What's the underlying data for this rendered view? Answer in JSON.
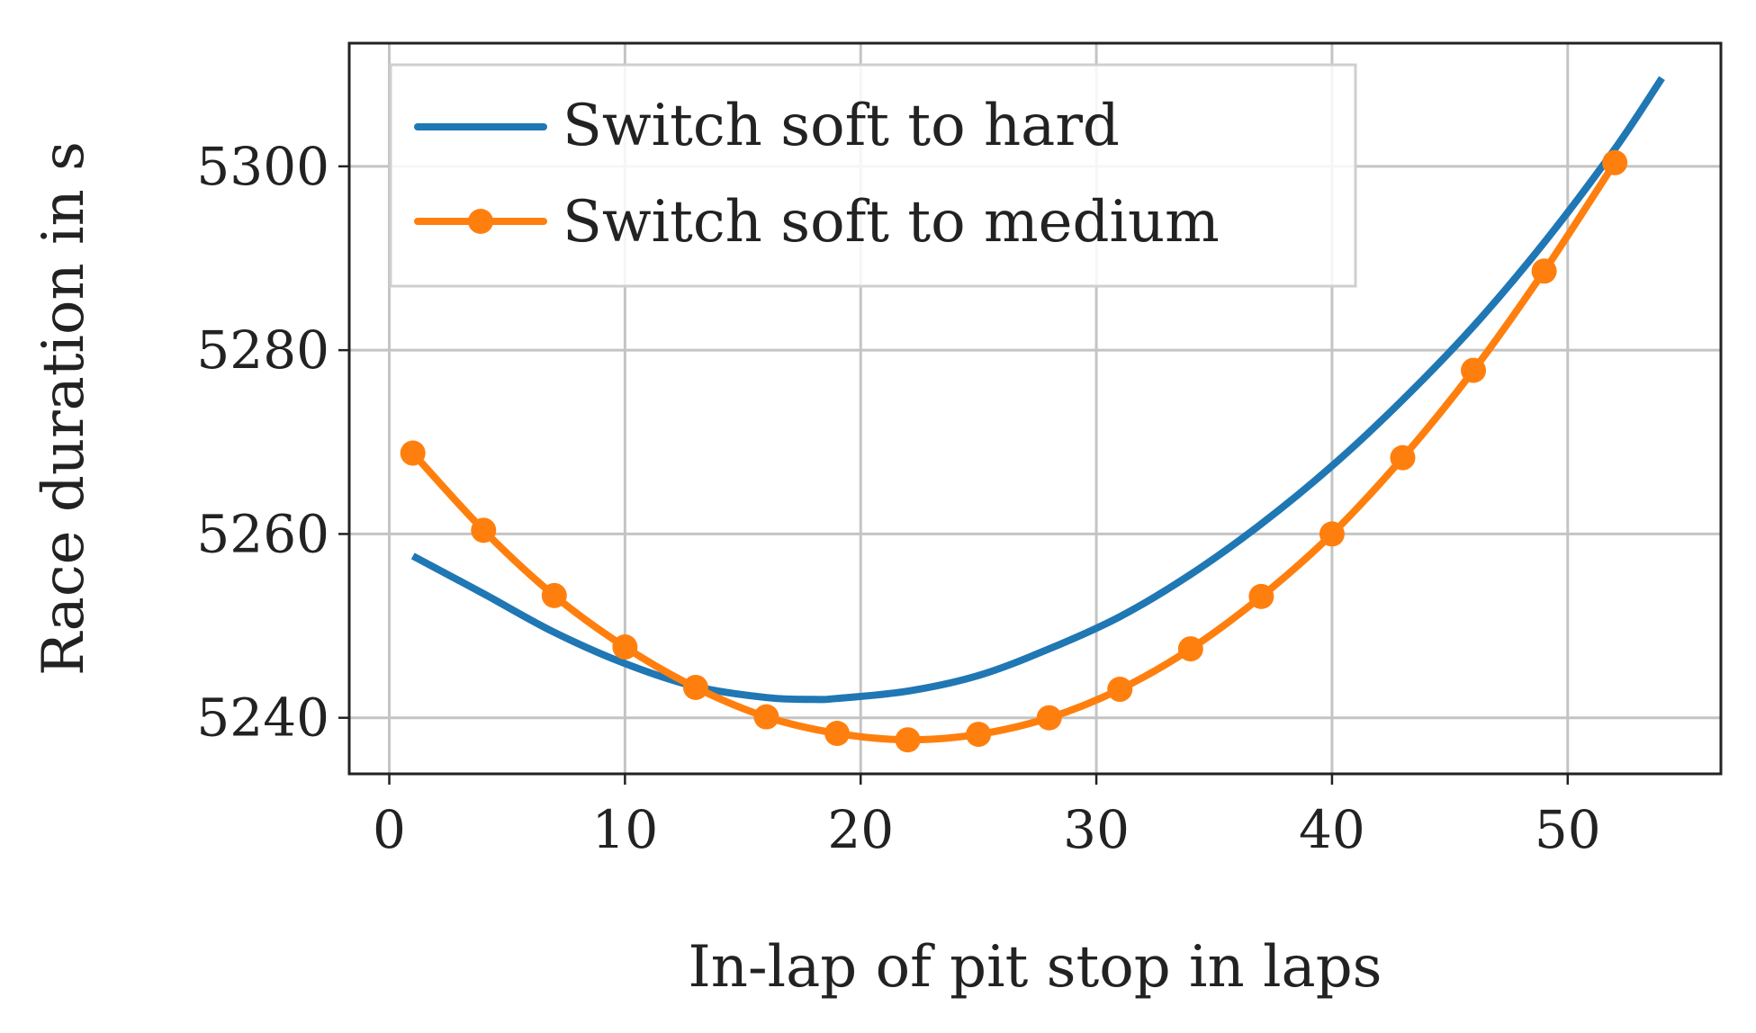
{
  "chart_data": {
    "type": "line",
    "title": "",
    "xlabel": "In-lap of pit stop in laps",
    "ylabel": "Race duration in s",
    "xlim": [
      -1.7,
      56.5
    ],
    "ylim": [
      5233.9,
      5313.4
    ],
    "xticks": [
      0,
      10,
      20,
      30,
      40,
      50
    ],
    "yticks": [
      5240,
      5260,
      5280,
      5300
    ],
    "xtick_labels": [
      "0",
      "10",
      "20",
      "30",
      "40",
      "50"
    ],
    "ytick_labels": [
      "5240",
      "5260",
      "5280",
      "5300"
    ],
    "grid": true,
    "legend_position": "top-left",
    "series": [
      {
        "name": "Switch soft to hard",
        "color": "#1f77b4",
        "marker": "none",
        "x": [
          1,
          4,
          7,
          10,
          13,
          16,
          18,
          19,
          22,
          25,
          28,
          31,
          34,
          37,
          40,
          43,
          46,
          49,
          52,
          54
        ],
        "y": [
          5257.6,
          5253.5,
          5249.3,
          5245.9,
          5243.4,
          5242.2,
          5242.0,
          5242.1,
          5242.9,
          5244.6,
          5247.5,
          5251.0,
          5255.6,
          5261.1,
          5267.4,
          5274.6,
          5282.6,
          5291.7,
          5301.9,
          5309.6
        ]
      },
      {
        "name": "Switch soft to medium",
        "color": "#ff7f0e",
        "marker": "circle",
        "x": [
          1,
          4,
          7,
          10,
          13,
          16,
          19,
          22,
          25,
          28,
          31,
          34,
          37,
          40,
          43,
          46,
          49,
          52
        ],
        "y": [
          5268.8,
          5260.4,
          5253.3,
          5247.7,
          5243.3,
          5240.1,
          5238.3,
          5237.6,
          5238.2,
          5240.0,
          5243.1,
          5247.5,
          5253.2,
          5260.0,
          5268.3,
          5277.8,
          5288.6,
          5300.4
        ]
      }
    ]
  }
}
